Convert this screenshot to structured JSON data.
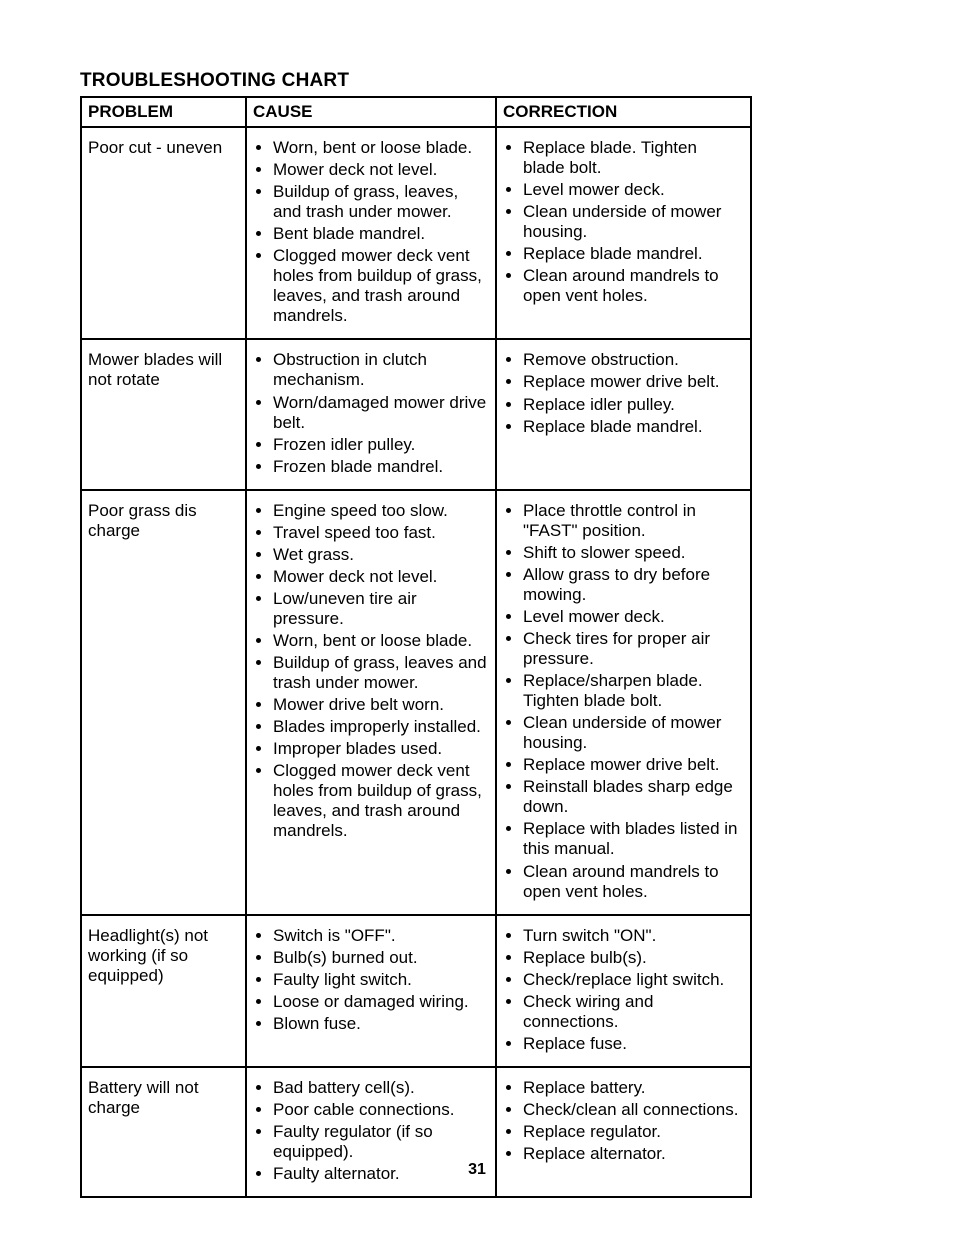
{
  "title": "TROUBLESHOOTING CHART",
  "columns": [
    "PROBLEM",
    "CAUSE",
    "CORRECTION"
  ],
  "page_number": "31",
  "rows": [
    {
      "problem": "Poor cut - uneven",
      "causes": [
        "Worn, bent or loose blade.",
        "Mower deck not level.",
        "Buildup of grass, leaves, and trash under mower.",
        "Bent blade mandrel.",
        "Clogged mower deck vent holes from buildup of grass, leaves, and trash around mandrels."
      ],
      "corrections": [
        "Replace blade. Tighten blade bolt.",
        "Level mower deck.",
        "Clean underside of mower housing.",
        "Replace blade mandrel.",
        "Clean around mandrels to open vent holes."
      ]
    },
    {
      "problem": "Mower blades will not rotate",
      "causes": [
        "Obstruction in clutch mechanism.",
        "Worn/damaged mower drive belt.",
        "Frozen idler pulley.",
        "Frozen blade mandrel."
      ],
      "corrections": [
        "Remove obstruction.",
        "Replace mower drive belt.",
        "Replace idler pulley.",
        "Replace blade mandrel."
      ]
    },
    {
      "problem": "Poor grass dis charge",
      "causes": [
        "Engine speed too slow.",
        "Travel speed too fast.",
        "Wet grass.",
        "Mower deck not level.",
        "Low/uneven tire air pressure.",
        "Worn, bent or loose blade.",
        "Buildup of grass, leaves and trash under mower.",
        "Mower drive belt worn.",
        "Blades improperly installed.",
        "Improper blades used.",
        "Clogged mower deck vent holes from buildup of grass, leaves, and trash around mandrels."
      ],
      "corrections": [
        "Place throttle control in \"FAST\" position.",
        "Shift to slower speed.",
        "Allow grass to dry before mowing.",
        "Level mower deck.",
        "Check tires for proper air pressure.",
        "Replace/sharpen blade. Tighten blade bolt.",
        "Clean underside of mower housing.",
        "Replace mower drive belt.",
        "Reinstall blades sharp edge down.",
        "Replace with blades listed in this manual.",
        "Clean around mandrels to open vent holes."
      ]
    },
    {
      "problem": "Headlight(s) not working (if so equipped)",
      "causes": [
        "Switch is \"OFF\".",
        "Bulb(s) burned out.",
        "Faulty light switch.",
        "Loose or damaged wiring.",
        "Blown fuse."
      ],
      "corrections": [
        "Turn switch \"ON\".",
        "Replace bulb(s).",
        "Check/replace light switch.",
        "Check wiring and connections.",
        "Replace fuse."
      ]
    },
    {
      "problem": "Battery will not charge",
      "causes": [
        "Bad battery cell(s).",
        "Poor cable connections.",
        "Faulty regulator (if so equipped).",
        "Faulty alternator."
      ],
      "corrections": [
        "Replace battery.",
        "Check/clean all connections.",
        "Replace regulator.",
        "Replace alternator."
      ]
    }
  ]
}
